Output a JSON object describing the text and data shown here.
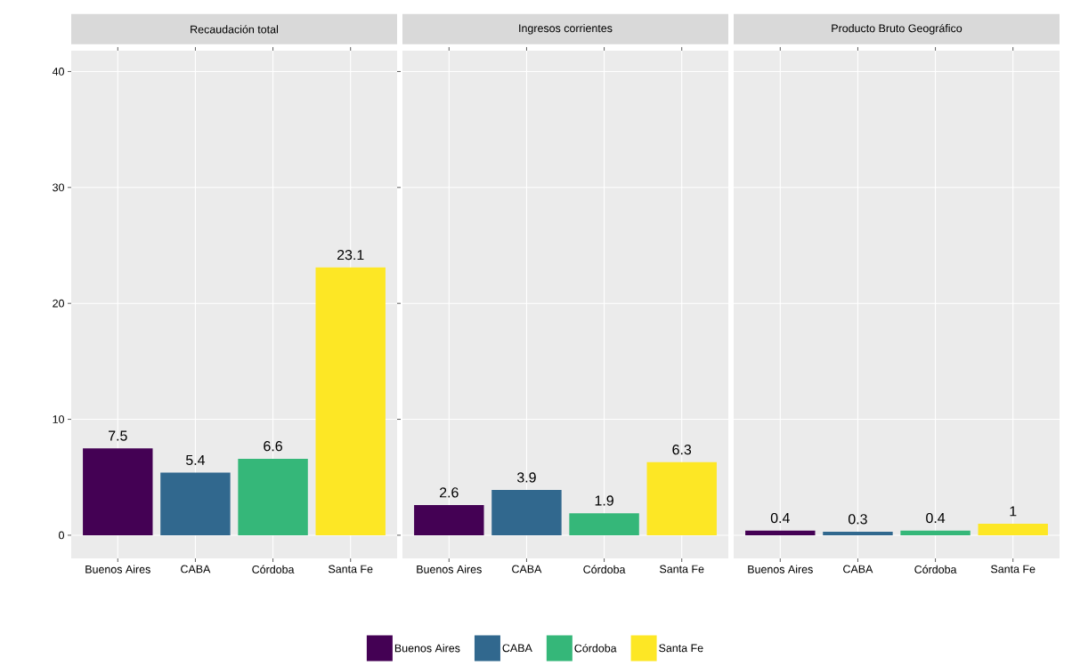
{
  "chart_data": [
    {
      "type": "bar",
      "title": "Recaudación total",
      "categories": [
        "Buenos Aires",
        "CABA",
        "Córdoba",
        "Santa Fe"
      ],
      "stacked": true,
      "series": [
        {
          "name": "Buenos Aires",
          "color": "#440154",
          "values": [
            7.5,
            null,
            null,
            null
          ]
        },
        {
          "name": "CABA",
          "color": "#31688e",
          "values": [
            null,
            5.4,
            null,
            null
          ]
        },
        {
          "name": "Córdoba",
          "color": "#35b779",
          "values": [
            null,
            null,
            6.6,
            null
          ]
        },
        {
          "name": "Santa Fe",
          "color": "#fde725",
          "values": [
            null,
            null,
            null,
            23.1
          ]
        }
      ],
      "data_labels": true,
      "ylim": [
        -2,
        41.8
      ],
      "yticks": [
        0,
        10,
        20,
        30,
        40
      ],
      "grid": true,
      "legend": "bottom"
    },
    {
      "type": "bar",
      "title": "Ingresos corrientes",
      "categories": [
        "Buenos Aires",
        "CABA",
        "Córdoba",
        "Santa Fe"
      ],
      "stacked": true,
      "series": [
        {
          "color": "#440154",
          "values": [
            2.6,
            null,
            null,
            null
          ]
        },
        {
          "color": "#31688e",
          "values": [
            null,
            3.9,
            null,
            null
          ]
        },
        {
          "color": "#35b779",
          "values": [
            null,
            null,
            1.9,
            null
          ]
        },
        {
          "color": "#fde725",
          "values": [
            null,
            null,
            null,
            6.3
          ]
        }
      ],
      "data_labels": true,
      "ylim": [
        -2,
        41.8
      ],
      "yticks": [
        0,
        10,
        20,
        30,
        40
      ],
      "grid": true,
      "tick_labels": "x"
    },
    {
      "type": "bar",
      "title": "Producto Bruto Geográfico",
      "categories": [
        "Buenos Aires",
        "CABA",
        "Córdoba",
        "Santa Fe"
      ],
      "stacked": true,
      "series": [
        {
          "color": "#440154",
          "values": [
            0.4,
            null,
            null,
            null
          ]
        },
        {
          "color": "#31688e",
          "values": [
            null,
            0.3,
            null,
            null
          ]
        },
        {
          "color": "#35b779",
          "values": [
            null,
            null,
            0.4,
            null
          ]
        },
        {
          "color": "#fde725",
          "values": [
            null,
            null,
            null,
            1
          ]
        }
      ],
      "data_labels": true,
      "ylim": [
        -2,
        41.8
      ],
      "yticks": [
        0,
        10,
        20,
        30,
        40
      ],
      "grid": true,
      "tick_labels": "x"
    }
  ]
}
